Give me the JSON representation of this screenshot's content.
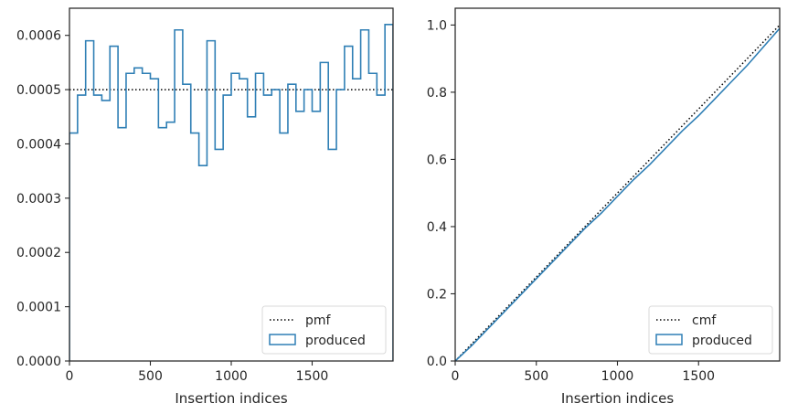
{
  "chart_data": [
    {
      "type": "step",
      "xlabel": "Insertion indices",
      "ylabel": "",
      "xlim": [
        0,
        2000
      ],
      "ylim": [
        0,
        0.00065
      ],
      "xticks": [
        0,
        500,
        1000,
        1500
      ],
      "yticks": [
        0,
        0.0001,
        0.0002,
        0.0003,
        0.0004,
        0.0005,
        0.0006
      ],
      "ytick_labels": [
        "0.0000",
        "0.0001",
        "0.0002",
        "0.0003",
        "0.0004",
        "0.0005",
        "0.0006"
      ],
      "grid": false,
      "legend_position": "lower-right",
      "series": [
        {
          "name": "pmf",
          "style": "dotted",
          "color": "#000000",
          "x": [
            0,
            2000
          ],
          "y": [
            0.0005,
            0.0005
          ]
        },
        {
          "name": "produced",
          "style": "step",
          "color": "#2f7fb5",
          "bin_edges": [
            0,
            50,
            100,
            150,
            200,
            250,
            300,
            350,
            400,
            450,
            500,
            550,
            600,
            650,
            700,
            750,
            800,
            850,
            900,
            950,
            1000,
            1050,
            1100,
            1150,
            1200,
            1250,
            1300,
            1350,
            1400,
            1450,
            1500,
            1550,
            1600,
            1650,
            1700,
            1750,
            1800,
            1850,
            1900,
            1950,
            2000
          ],
          "values": [
            0.00042,
            0.00049,
            0.00059,
            0.00049,
            0.00048,
            0.00058,
            0.00043,
            0.00053,
            0.00054,
            0.00053,
            0.00052,
            0.00043,
            0.00044,
            0.00061,
            0.00051,
            0.00042,
            0.00036,
            0.00059,
            0.00039,
            0.00049,
            0.00053,
            0.00052,
            0.00045,
            0.00053,
            0.00049,
            0.0005,
            0.00042,
            0.00051,
            0.00046,
            0.0005,
            0.00046,
            0.00055,
            0.00039,
            0.0005,
            0.00058,
            0.00052,
            0.00061,
            0.00053,
            0.00049,
            0.00062
          ]
        }
      ]
    },
    {
      "type": "line",
      "xlabel": "Insertion indices",
      "ylabel": "",
      "xlim": [
        0,
        2000
      ],
      "ylim": [
        0,
        1.05
      ],
      "xticks": [
        0,
        500,
        1000,
        1500
      ],
      "yticks": [
        0,
        0.2,
        0.4,
        0.6,
        0.8,
        1.0
      ],
      "ytick_labels": [
        "0.0",
        "0.2",
        "0.4",
        "0.6",
        "0.8",
        "1.0"
      ],
      "grid": false,
      "legend_position": "lower-right",
      "series": [
        {
          "name": "cmf",
          "style": "dotted",
          "color": "#000000",
          "x": [
            0,
            2000
          ],
          "y": [
            0,
            1.0
          ]
        },
        {
          "name": "produced",
          "style": "solid",
          "color": "#2f7fb5",
          "x": [
            0,
            100,
            200,
            300,
            400,
            500,
            600,
            700,
            800,
            900,
            1000,
            1100,
            1200,
            1300,
            1400,
            1500,
            1600,
            1700,
            1800,
            1900,
            2000
          ],
          "y": [
            0,
            0.045,
            0.095,
            0.145,
            0.195,
            0.245,
            0.295,
            0.345,
            0.395,
            0.44,
            0.49,
            0.54,
            0.585,
            0.635,
            0.685,
            0.73,
            0.78,
            0.83,
            0.88,
            0.935,
            0.99
          ]
        }
      ]
    }
  ]
}
